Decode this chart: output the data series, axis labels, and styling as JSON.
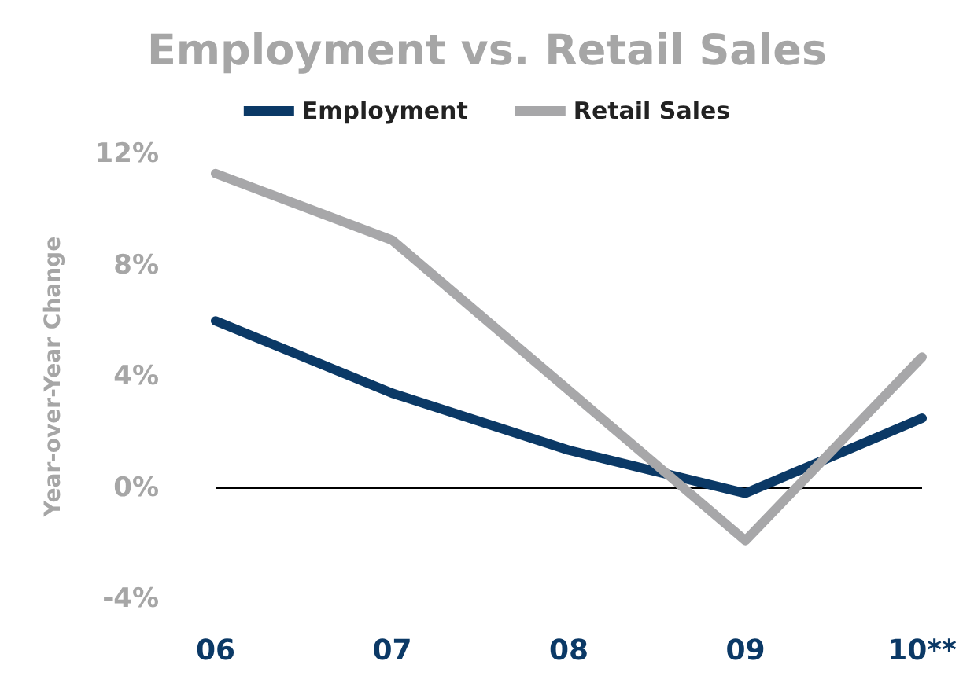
{
  "chart_data": {
    "type": "line",
    "title": "Employment vs. Retail Sales",
    "ylabel": "Year-over-Year Change",
    "categories": [
      "06",
      "07",
      "08",
      "09",
      "10**"
    ],
    "series": [
      {
        "name": "Employment",
        "color": "#0b3966",
        "values": [
          6.0,
          3.4,
          1.35,
          -0.2,
          2.5
        ]
      },
      {
        "name": "Retail Sales",
        "color": "#a7a7a9",
        "values": [
          11.3,
          8.9,
          3.5,
          -1.9,
          4.7
        ]
      }
    ],
    "ylim": [
      -4,
      12
    ],
    "yticks": [
      {
        "value": -4,
        "label": "-4%"
      },
      {
        "value": 0,
        "label": "0%"
      },
      {
        "value": 4,
        "label": "4%"
      },
      {
        "value": 8,
        "label": "8%"
      },
      {
        "value": 12,
        "label": "12%"
      }
    ],
    "ref_lines": [
      {
        "axis": "y",
        "value": 0,
        "color": "#000000"
      }
    ],
    "grid": false,
    "legend": "top",
    "marker": "none",
    "line_style": "solid"
  }
}
